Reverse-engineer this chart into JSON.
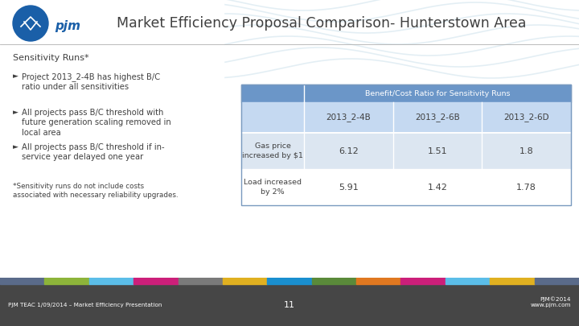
{
  "title": "Market Efficiency Proposal Comparison- Hunterstown Area",
  "bg_color": "#ffffff",
  "footer_bg": "#464646",
  "footer_text_left": "PJM TEAC 1/09/2014 – Market Efficiency Presentation",
  "footer_text_center": "11",
  "footer_text_right": "PJM©2014\nwww.pjm.com",
  "bullet_title": "Sensitivity Runs*",
  "bullets": [
    "Project 2013_2-4B has highest B/C\nratio under all sensitivities",
    "All projects pass B/C threshold with\nfuture generation scaling removed in\nlocal area",
    "All projects pass B/C threshold if in-\nservice year delayed one year"
  ],
  "footnote": "*Sensitivity runs do not include costs\nassociated with necessary reliability upgrades.",
  "table_header_main": "Benefit/Cost Ratio for Sensitivity Runs",
  "table_col_headers": [
    "2013_2-4B",
    "2013_2-6B",
    "2013_2-6D"
  ],
  "table_row_headers": [
    "Gas price\nincreased by $1",
    "Load increased\nby 2%"
  ],
  "table_data": [
    [
      "6.12",
      "1.51",
      "1.8"
    ],
    [
      "5.91",
      "1.42",
      "1.78"
    ]
  ],
  "table_header_color": "#6b96c8",
  "table_col_header_color": "#c5d9f1",
  "table_row_color_1": "#dce6f1",
  "table_row_color_2": "#ffffff",
  "table_text_color": "#404040",
  "colorbar_colors": [
    "#5a6b8a",
    "#8db43a",
    "#5bbde8",
    "#cc1f7a",
    "#7a7a7a",
    "#e0b020",
    "#1a8fcf",
    "#5a8a3a",
    "#e07820",
    "#cc1f7a",
    "#5bbde8",
    "#e0b020",
    "#5a6b8a"
  ],
  "title_color": "#404040",
  "pjm_blue": "#1a5fa8",
  "wave_color": "#d8e8f0",
  "line_color": "#b0b0b0"
}
